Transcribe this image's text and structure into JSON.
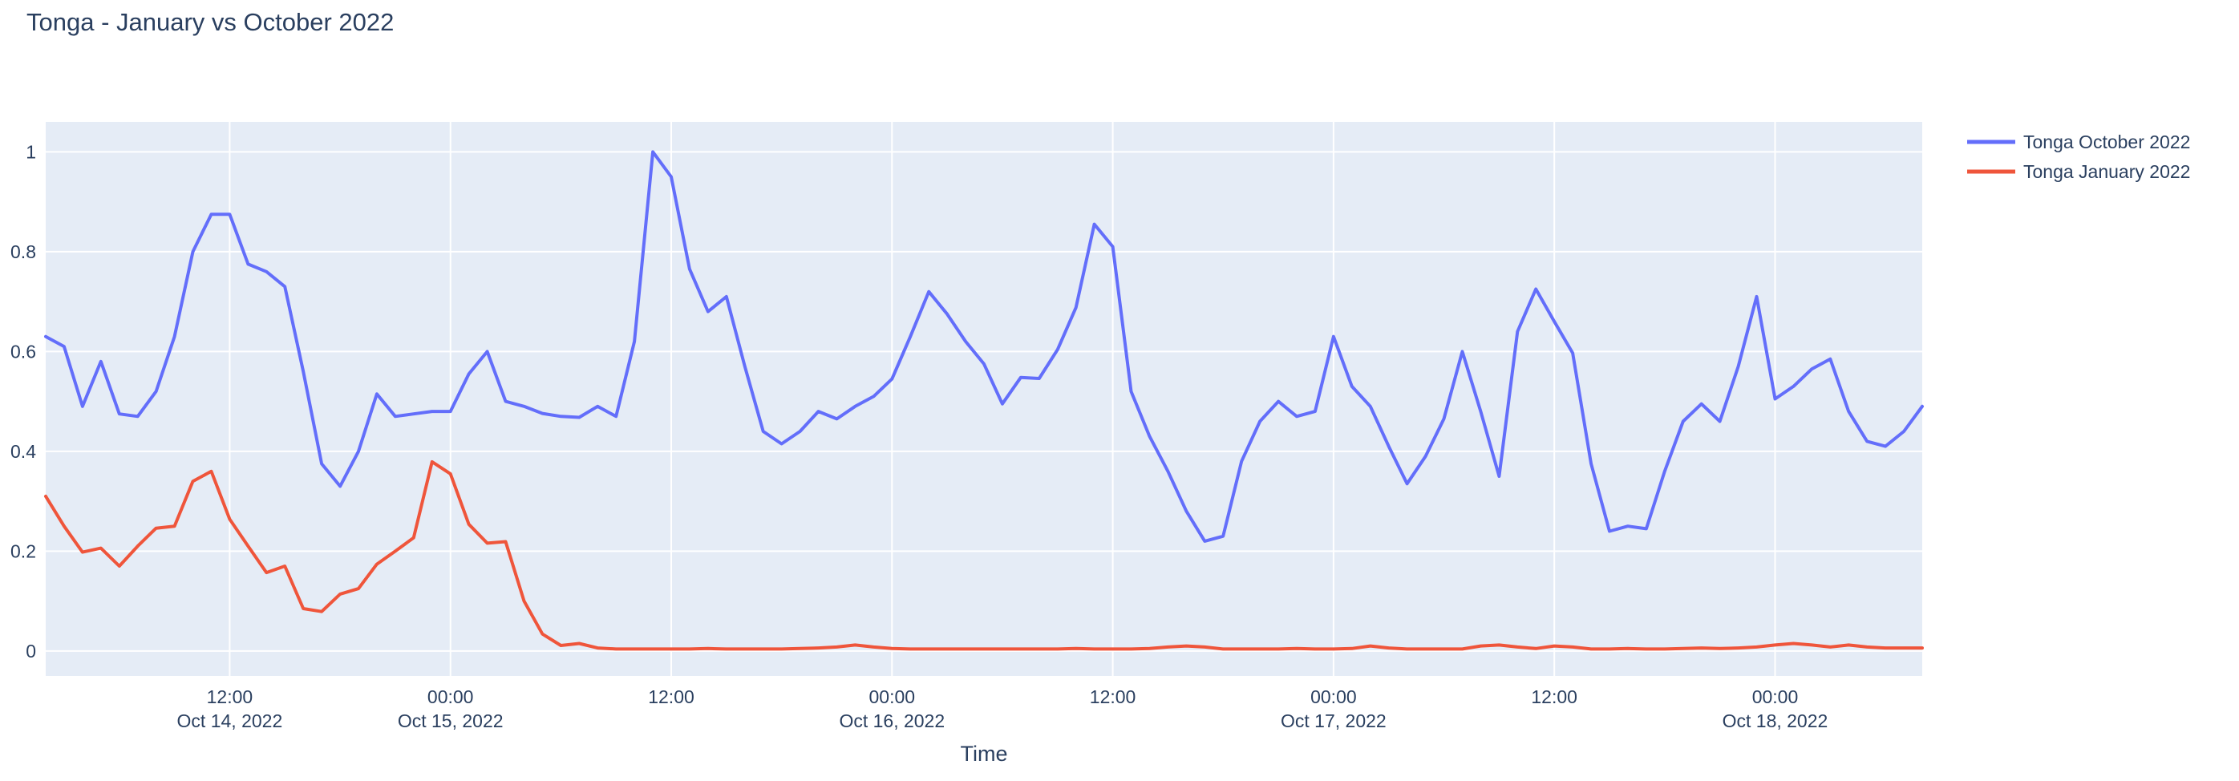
{
  "title": "Tonga - January vs October 2022",
  "colors": {
    "text": "#2a3f5f",
    "plot_background": "#e5ecf6",
    "gridline": "#ffffff",
    "series_october": "#636efa",
    "series_january": "#ef553b"
  },
  "chart_data": {
    "type": "line",
    "title": "Tonga - January vs October 2022",
    "xlabel": "Time",
    "ylabel": "",
    "grid": true,
    "legend_position": "outside-top-right",
    "plot_bg": "#e5ecf6",
    "ylim": [
      -0.05,
      1.06
    ],
    "x_start": "2022-10-14 02:00",
    "x_step_hours": 1,
    "x_end": "2022-10-18 08:00",
    "y_ticks": [
      0,
      0.2,
      0.4,
      0.6,
      0.8,
      1
    ],
    "x_ticks": [
      {
        "i": 10,
        "time": "12:00",
        "date": "Oct 14, 2022"
      },
      {
        "i": 22,
        "time": "00:00",
        "date": "Oct 15, 2022"
      },
      {
        "i": 34,
        "time": "12:00",
        "date": ""
      },
      {
        "i": 46,
        "time": "00:00",
        "date": "Oct 16, 2022"
      },
      {
        "i": 58,
        "time": "12:00",
        "date": ""
      },
      {
        "i": 70,
        "time": "00:00",
        "date": "Oct 17, 2022"
      },
      {
        "i": 82,
        "time": "12:00",
        "date": ""
      },
      {
        "i": 94,
        "time": "00:00",
        "date": "Oct 18, 2022"
      }
    ],
    "series": [
      {
        "name": "Tonga October 2022",
        "color": "#636efa",
        "values": [
          0.63,
          0.61,
          0.49,
          0.58,
          0.475,
          0.47,
          0.52,
          0.63,
          0.8,
          0.875,
          0.875,
          0.775,
          0.76,
          0.73,
          0.56,
          0.375,
          0.33,
          0.4,
          0.515,
          0.47,
          0.475,
          0.48,
          0.48,
          0.555,
          0.6,
          0.5,
          0.49,
          0.476,
          0.47,
          0.468,
          0.49,
          0.47,
          0.62,
          1.0,
          0.95,
          0.765,
          0.68,
          0.71,
          0.57,
          0.44,
          0.415,
          0.44,
          0.48,
          0.465,
          0.49,
          0.51,
          0.545,
          0.63,
          0.72,
          0.675,
          0.62,
          0.575,
          0.495,
          0.548,
          0.546,
          0.604,
          0.688,
          0.855,
          0.81,
          0.52,
          0.43,
          0.36,
          0.28,
          0.22,
          0.23,
          0.38,
          0.46,
          0.5,
          0.47,
          0.48,
          0.63,
          0.53,
          0.49,
          0.41,
          0.335,
          0.39,
          0.465,
          0.6,
          0.48,
          0.35,
          0.64,
          0.725,
          0.66,
          0.597,
          0.375,
          0.24,
          0.25,
          0.245,
          0.36,
          0.46,
          0.495,
          0.46,
          0.57,
          0.71,
          0.505,
          0.53,
          0.565,
          0.585,
          0.48,
          0.42,
          0.41,
          0.44,
          0.49
        ]
      },
      {
        "name": "Tonga January 2022",
        "color": "#ef553b",
        "values": [
          0.31,
          0.25,
          0.198,
          0.206,
          0.17,
          0.21,
          0.246,
          0.25,
          0.34,
          0.36,
          0.264,
          0.21,
          0.157,
          0.17,
          0.085,
          0.079,
          0.114,
          0.125,
          0.174,
          0.2,
          0.227,
          0.379,
          0.355,
          0.254,
          0.216,
          0.219,
          0.1,
          0.034,
          0.011,
          0.015,
          0.006,
          0.004,
          0.004,
          0.004,
          0.004,
          0.004,
          0.005,
          0.004,
          0.004,
          0.004,
          0.004,
          0.005,
          0.006,
          0.008,
          0.012,
          0.008,
          0.005,
          0.004,
          0.004,
          0.004,
          0.004,
          0.004,
          0.004,
          0.004,
          0.004,
          0.004,
          0.005,
          0.004,
          0.004,
          0.004,
          0.005,
          0.008,
          0.01,
          0.008,
          0.004,
          0.004,
          0.004,
          0.004,
          0.005,
          0.004,
          0.004,
          0.005,
          0.01,
          0.006,
          0.004,
          0.004,
          0.004,
          0.004,
          0.01,
          0.012,
          0.008,
          0.005,
          0.01,
          0.008,
          0.004,
          0.004,
          0.005,
          0.004,
          0.004,
          0.005,
          0.006,
          0.005,
          0.006,
          0.008,
          0.012,
          0.015,
          0.012,
          0.008,
          0.012,
          0.008,
          0.006,
          0.006,
          0.006
        ]
      }
    ]
  }
}
